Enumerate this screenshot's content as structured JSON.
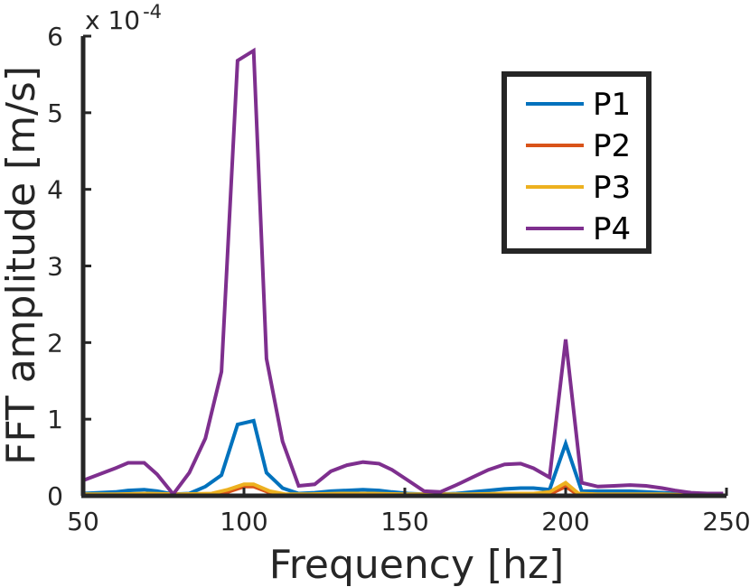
{
  "chart_data": {
    "type": "line",
    "xlabel": "Frequency [hz]",
    "ylabel": "FFT amplitude [m/s]",
    "y_multiplier_base": "x 10",
    "y_multiplier_exponent": "-4",
    "xlim": [
      50,
      250
    ],
    "ylim": [
      0,
      6
    ],
    "xticks": [
      50,
      100,
      150,
      200,
      250
    ],
    "yticks": [
      0,
      1,
      2,
      3,
      4,
      5,
      6
    ],
    "legend_position": "top-right",
    "grid": false,
    "series": [
      {
        "name": "P1",
        "color": "#0072BD",
        "x": [
          50,
          55,
          60,
          64,
          69,
          73,
          78,
          83,
          88,
          93,
          98,
          103,
          107,
          112,
          117,
          122,
          127,
          132,
          137,
          142,
          146,
          151,
          156,
          161,
          166,
          171,
          176,
          181,
          186,
          190,
          195,
          200,
          205,
          210,
          215,
          220,
          225,
          230,
          234,
          239,
          244,
          249
        ],
        "y": [
          0.03,
          0.04,
          0.05,
          0.07,
          0.08,
          0.06,
          0.02,
          0.03,
          0.12,
          0.27,
          0.93,
          0.98,
          0.3,
          0.1,
          0.03,
          0.04,
          0.06,
          0.07,
          0.08,
          0.07,
          0.05,
          0.03,
          0.02,
          0.02,
          0.03,
          0.05,
          0.07,
          0.09,
          0.1,
          0.1,
          0.08,
          0.68,
          0.06,
          0.06,
          0.06,
          0.06,
          0.05,
          0.04,
          0.03,
          0.02,
          0.01,
          0.01
        ]
      },
      {
        "name": "P2",
        "color": "#D95319",
        "x": [
          50,
          60,
          70,
          80,
          90,
          95,
          100,
          103,
          108,
          113,
          120,
          130,
          140,
          150,
          160,
          170,
          180,
          190,
          195,
          200,
          204,
          210,
          220,
          230,
          240,
          249
        ],
        "y": [
          0.01,
          0.01,
          0.01,
          0.01,
          0.01,
          0.05,
          0.12,
          0.12,
          0.04,
          0.01,
          0.01,
          0.01,
          0.01,
          0.01,
          0.01,
          0.01,
          0.01,
          0.01,
          0.02,
          0.12,
          0.01,
          0.01,
          0.01,
          0.01,
          0.01,
          0.01
        ]
      },
      {
        "name": "P3",
        "color": "#EDB120",
        "x": [
          50,
          60,
          70,
          80,
          90,
          95,
          100,
          103,
          108,
          113,
          120,
          130,
          140,
          150,
          160,
          170,
          180,
          190,
          195,
          200,
          204,
          210,
          220,
          230,
          240,
          249
        ],
        "y": [
          0.02,
          0.02,
          0.03,
          0.02,
          0.03,
          0.08,
          0.15,
          0.15,
          0.06,
          0.02,
          0.02,
          0.03,
          0.03,
          0.02,
          0.02,
          0.02,
          0.03,
          0.03,
          0.05,
          0.17,
          0.03,
          0.02,
          0.02,
          0.02,
          0.01,
          0.01
        ]
      },
      {
        "name": "P4",
        "color": "#7E2F8E",
        "x": [
          50,
          55,
          60,
          64,
          69,
          73,
          78,
          83,
          88,
          93,
          98,
          103,
          107,
          112,
          117,
          122,
          127,
          132,
          137,
          142,
          146,
          151,
          156,
          161,
          166,
          171,
          176,
          181,
          186,
          190,
          195,
          200,
          205,
          210,
          215,
          220,
          225,
          230,
          234,
          239,
          244,
          249
        ],
        "y": [
          0.2,
          0.28,
          0.36,
          0.43,
          0.43,
          0.28,
          0.02,
          0.3,
          0.75,
          1.62,
          5.68,
          5.81,
          1.79,
          0.71,
          0.13,
          0.15,
          0.32,
          0.4,
          0.44,
          0.42,
          0.34,
          0.2,
          0.06,
          0.05,
          0.14,
          0.24,
          0.34,
          0.41,
          0.42,
          0.36,
          0.24,
          2.04,
          0.17,
          0.12,
          0.13,
          0.14,
          0.13,
          0.1,
          0.07,
          0.04,
          0.03,
          0.03
        ]
      }
    ]
  }
}
